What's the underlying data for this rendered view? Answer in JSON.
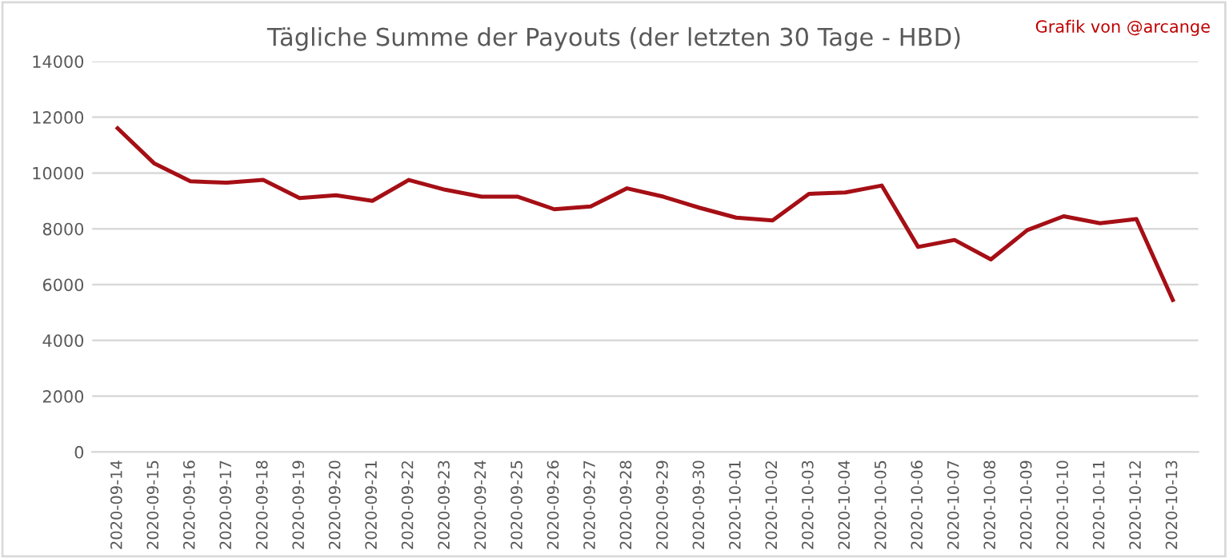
{
  "chart_data": {
    "type": "line",
    "title": "Tägliche Summe der Payouts (der letzten 30 Tage - HBD)",
    "annotations": [
      "Grafik von @arcange"
    ],
    "categories": [
      "2020-09-14",
      "2020-09-15",
      "2020-09-16",
      "2020-09-17",
      "2020-09-18",
      "2020-09-19",
      "2020-09-20",
      "2020-09-21",
      "2020-09-22",
      "2020-09-23",
      "2020-09-24",
      "2020-09-25",
      "2020-09-26",
      "2020-09-27",
      "2020-09-28",
      "2020-09-29",
      "2020-09-30",
      "2020-10-01",
      "2020-10-02",
      "2020-10-03",
      "2020-10-04",
      "2020-10-05",
      "2020-10-06",
      "2020-10-07",
      "2020-10-08",
      "2020-10-09",
      "2020-10-10",
      "2020-10-11",
      "2020-10-12",
      "2020-10-13"
    ],
    "series": [
      {
        "color": "#a50f15",
        "values": [
          11600,
          10350,
          9700,
          9650,
          9750,
          9100,
          9200,
          9000,
          9750,
          9400,
          9150,
          9150,
          8700,
          8800,
          9450,
          9150,
          8750,
          8400,
          8300,
          9250,
          9300,
          9550,
          7350,
          7600,
          6900,
          7950,
          8450,
          8200,
          8350,
          5450
        ]
      }
    ],
    "ylim": [
      0,
      14000
    ],
    "yticks": [
      0,
      2000,
      4000,
      6000,
      8000,
      10000,
      12000,
      14000
    ],
    "grid": "y",
    "legend": false,
    "marker": "none",
    "line_style": "solid"
  }
}
